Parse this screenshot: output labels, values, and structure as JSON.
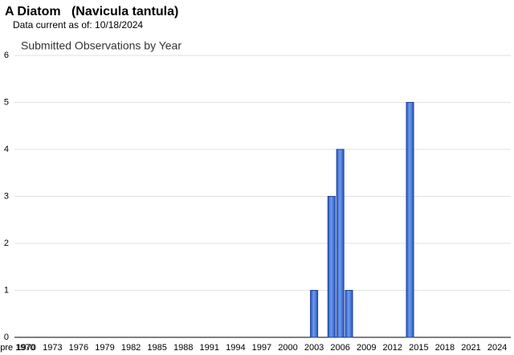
{
  "page_title": "A Diatom   (Navicula tantula)",
  "data_note": "Data current as of: 10/18/2024",
  "chart_data": {
    "type": "bar",
    "title": "Submitted Observations by Year",
    "categories": [
      "pre 1970",
      "1970",
      null,
      null,
      "1973",
      null,
      null,
      "1976",
      null,
      null,
      "1979",
      null,
      null,
      "1982",
      null,
      null,
      "1985",
      null,
      null,
      "1988",
      null,
      null,
      "1991",
      null,
      null,
      "1994",
      null,
      null,
      "1997",
      null,
      null,
      "2000",
      null,
      null,
      "2003",
      null,
      null,
      "2006",
      null,
      null,
      "2009",
      null,
      null,
      "2012",
      null,
      null,
      "2015",
      null,
      null,
      "2018",
      null,
      null,
      "2021",
      null,
      null,
      "2024"
    ],
    "values": [
      0,
      0,
      0,
      0,
      0,
      0,
      0,
      0,
      0,
      0,
      0,
      0,
      0,
      0,
      0,
      0,
      0,
      0,
      0,
      0,
      0,
      0,
      0,
      0,
      0,
      0,
      0,
      0,
      0,
      0,
      0,
      0,
      0,
      0,
      1,
      0,
      3,
      4,
      1,
      0,
      0,
      0,
      0,
      0,
      0,
      5,
      0,
      0,
      0,
      0,
      0,
      0,
      0,
      0,
      0,
      0
    ],
    "color": "#3d72dc",
    "ylim": [
      0,
      6
    ],
    "yticks": [
      0,
      1,
      2,
      3,
      4,
      5,
      6
    ],
    "grid": true
  }
}
